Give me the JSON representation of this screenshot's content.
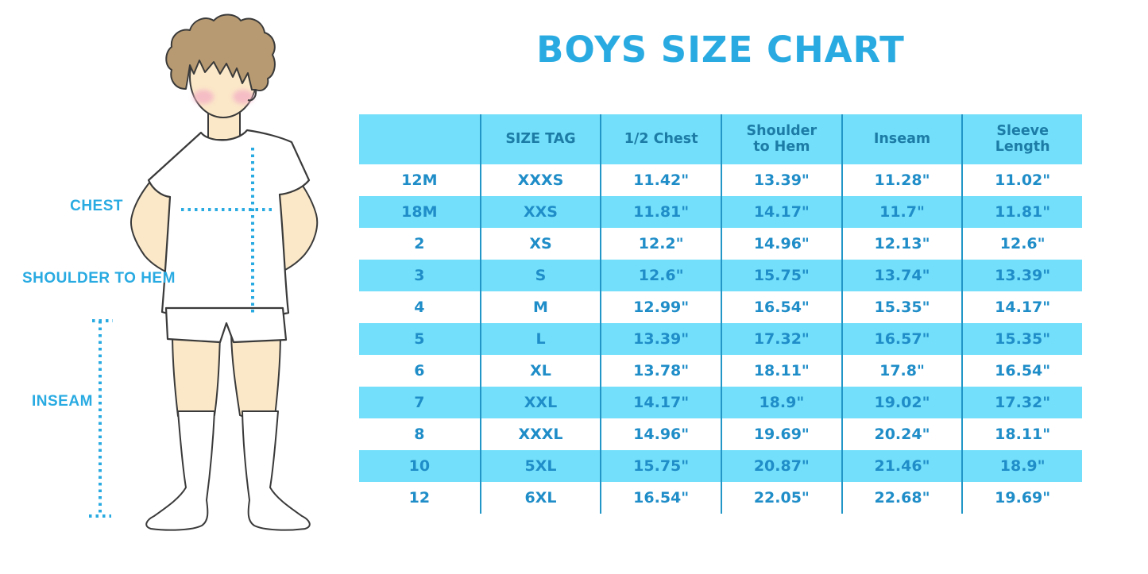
{
  "title": "BOYS SIZE CHART",
  "figure": {
    "description": "cartoon boy in white t-shirt, shorts and knee socks with dotted measurement guides",
    "labels": {
      "chest": "CHEST",
      "shoulder_to_hem": "SHOULDER TO HEM",
      "inseam": "INSEAM"
    }
  },
  "colors": {
    "accent_blue": "#29ABE2",
    "row_blue": "#74DFFA",
    "header_text": "#1C7CA6",
    "cell_text": "#1F8DC8",
    "divider": "#2196C7",
    "skin": "#FBE8C8",
    "hair": "#B79A71",
    "cheek": "#F3AFC4",
    "outline": "#3A3A3A"
  },
  "chart_data": {
    "type": "table",
    "title": "BOYS SIZE CHART",
    "columns": [
      "",
      "SIZE TAG",
      "1/2 Chest",
      "Shoulder to Hem",
      "Inseam",
      "Sleeve Length"
    ],
    "rows": [
      [
        "12M",
        "XXXS",
        "11.42\"",
        "13.39\"",
        "11.28\"",
        "11.02\""
      ],
      [
        "18M",
        "XXS",
        "11.81\"",
        "14.17\"",
        "11.7\"",
        "11.81\""
      ],
      [
        "2",
        "XS",
        "12.2\"",
        "14.96\"",
        "12.13\"",
        "12.6\""
      ],
      [
        "3",
        "S",
        "12.6\"",
        "15.75\"",
        "13.74\"",
        "13.39\""
      ],
      [
        "4",
        "M",
        "12.99\"",
        "16.54\"",
        "15.35\"",
        "14.17\""
      ],
      [
        "5",
        "L",
        "13.39\"",
        "17.32\"",
        "16.57\"",
        "15.35\""
      ],
      [
        "6",
        "XL",
        "13.78\"",
        "18.11\"",
        "17.8\"",
        "16.54\""
      ],
      [
        "7",
        "XXL",
        "14.17\"",
        "18.9\"",
        "19.02\"",
        "17.32\""
      ],
      [
        "8",
        "XXXL",
        "14.96\"",
        "19.69\"",
        "20.24\"",
        "18.11\""
      ],
      [
        "10",
        "5XL",
        "15.75\"",
        "20.87\"",
        "21.46\"",
        "18.9\""
      ],
      [
        "12",
        "6XL",
        "16.54\"",
        "22.05\"",
        "22.68\"",
        "19.69\""
      ]
    ],
    "alternating_row_shading": "header and every second data row light blue",
    "legend_position": "none",
    "grid": "vertical column dividers only"
  }
}
